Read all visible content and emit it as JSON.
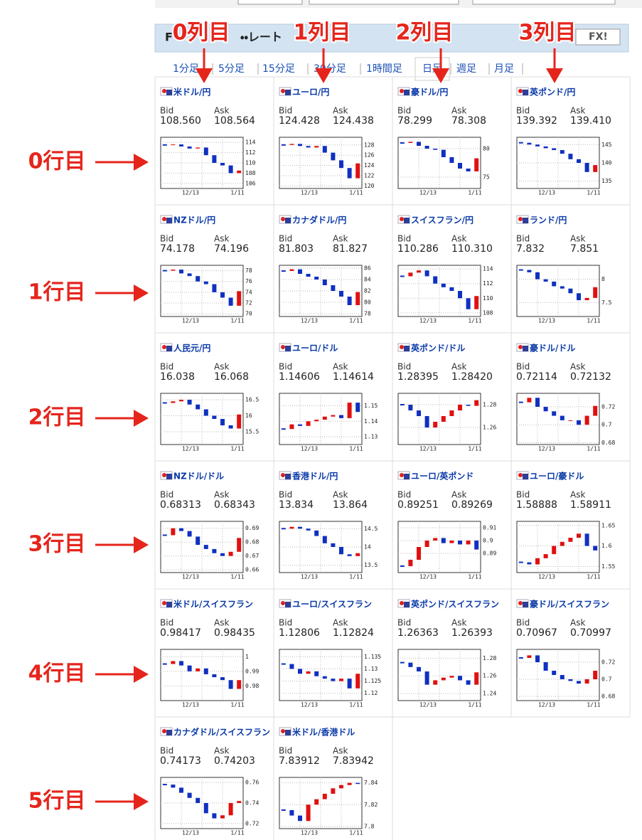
{
  "header": {
    "title_left": "F",
    "title_right": "・・レート",
    "logo": "FX!"
  },
  "tabs": [
    "1分足",
    "5分足",
    "15分足",
    "30分足",
    "1時間足",
    "日足",
    "週足",
    "月足"
  ],
  "labels": {
    "bid": "Bid",
    "ask": "Ask",
    "x_start": "12/13",
    "x_end": "1/11"
  },
  "annotations": {
    "columns": [
      "0列目",
      "1列目",
      "2列目",
      "3列目"
    ],
    "rows": [
      "0行目",
      "1行目",
      "2行目",
      "3行目",
      "4行目",
      "5行目"
    ]
  },
  "cards": [
    {
      "name": "米ドル/円",
      "bid": "108.560",
      "ask": "108.564",
      "ylim": [
        105,
        115
      ],
      "yticks": [
        114,
        112,
        110,
        108,
        106
      ],
      "values": [
        113.5,
        113.6,
        113.2,
        112.8,
        113.0,
        111.5,
        110.0,
        109.5,
        108.0,
        108.5
      ]
    },
    {
      "name": "ユーロ/円",
      "bid": "124.428",
      "ask": "124.438",
      "ylim": [
        119.5,
        129.5
      ],
      "yticks": [
        128,
        126,
        124,
        122,
        120
      ],
      "values": [
        128,
        128.2,
        127.8,
        127.5,
        127.8,
        126.5,
        125,
        123.5,
        121.5,
        124.4
      ]
    },
    {
      "name": "豪ドル/円",
      "bid": "78.299",
      "ask": "78.308",
      "ylim": [
        73,
        82
      ],
      "yticks": [
        80,
        75
      ],
      "values": [
        81,
        81.2,
        80.5,
        80,
        79.8,
        78.5,
        77.5,
        76.5,
        76,
        78.3
      ]
    },
    {
      "name": "英ポンド/円",
      "bid": "139.392",
      "ask": "139.410",
      "ylim": [
        133,
        147
      ],
      "yticks": [
        145,
        140,
        135
      ],
      "values": [
        145.5,
        145,
        144.5,
        144,
        143.5,
        142.5,
        141,
        140,
        137.5,
        139.4
      ]
    },
    {
      "name": "NZドル/円",
      "bid": "74.178",
      "ask": "74.196",
      "ylim": [
        69.5,
        79
      ],
      "yticks": [
        78,
        76,
        74,
        72,
        70
      ],
      "values": [
        78,
        78.2,
        77.5,
        77,
        76,
        75.5,
        74,
        73,
        71.5,
        74.2
      ]
    },
    {
      "name": "カナダドル/円",
      "bid": "81.803",
      "ask": "81.827",
      "ylim": [
        77.5,
        86.5
      ],
      "yticks": [
        86,
        84,
        82,
        80,
        78
      ],
      "values": [
        85.5,
        85.8,
        85,
        84.5,
        84,
        83,
        82,
        81,
        79.5,
        81.8
      ]
    },
    {
      "name": "スイスフラン/円",
      "bid": "110.286",
      "ask": "110.310",
      "ylim": [
        107.5,
        114.5
      ],
      "yticks": [
        114,
        112,
        110,
        108
      ],
      "values": [
        113,
        113.5,
        113.8,
        113,
        112,
        111.5,
        111,
        110,
        108.5,
        110.3
      ]
    },
    {
      "name": "ランド/円",
      "bid": "7.832",
      "ask": "7.851",
      "ylim": [
        7.2,
        8.3
      ],
      "yticks": [
        8,
        7.5
      ],
      "values": [
        8.2,
        8.15,
        8.0,
        7.95,
        7.85,
        7.8,
        7.7,
        7.55,
        7.6,
        7.83
      ]
    },
    {
      "name": "人民元/円",
      "bid": "16.038",
      "ask": "16.068",
      "ylim": [
        15.1,
        16.7
      ],
      "yticks": [
        16.5,
        16,
        15.5
      ],
      "values": [
        16.4,
        16.45,
        16.5,
        16.35,
        16.2,
        16.0,
        15.9,
        15.7,
        15.6,
        16.04
      ]
    },
    {
      "name": "ユーロ/ドル",
      "bid": "1.14606",
      "ask": "1.14614",
      "ylim": [
        1.125,
        1.158
      ],
      "yticks": [
        1.15,
        1.14,
        1.13
      ],
      "values": [
        1.135,
        1.138,
        1.137,
        1.14,
        1.141,
        1.143,
        1.144,
        1.142,
        1.152,
        1.146
      ]
    },
    {
      "name": "英ポンド/ドル",
      "bid": "1.28395",
      "ask": "1.28420",
      "ylim": [
        1.245,
        1.29
      ],
      "yticks": [
        1.28,
        1.26
      ],
      "values": [
        1.28,
        1.275,
        1.27,
        1.26,
        1.265,
        1.27,
        1.275,
        1.28,
        1.279,
        1.284
      ]
    },
    {
      "name": "豪ドル/ドル",
      "bid": "0.72114",
      "ask": "0.72132",
      "ylim": [
        0.678,
        0.735
      ],
      "yticks": [
        0.72,
        0.7,
        0.68
      ],
      "values": [
        0.725,
        0.73,
        0.72,
        0.715,
        0.71,
        0.705,
        0.705,
        0.7,
        0.71,
        0.721
      ]
    },
    {
      "name": "NZドル/ドル",
      "bid": "0.68313",
      "ask": "0.68343",
      "ylim": [
        0.658,
        0.695
      ],
      "yticks": [
        0.69,
        0.68,
        0.67,
        0.66
      ],
      "values": [
        0.685,
        0.69,
        0.688,
        0.684,
        0.678,
        0.675,
        0.672,
        0.67,
        0.673,
        0.683
      ]
    },
    {
      "name": "香港ドル/円",
      "bid": "13.834",
      "ask": "13.864",
      "ylim": [
        13.3,
        14.7
      ],
      "yticks": [
        14.5,
        14,
        13.5
      ],
      "values": [
        14.5,
        14.55,
        14.5,
        14.45,
        14.3,
        14.1,
        14,
        13.8,
        13.75,
        13.83
      ]
    },
    {
      "name": "ユーロ/英ポンド",
      "bid": "0.89251",
      "ask": "0.89269",
      "ylim": [
        0.875,
        0.915
      ],
      "yticks": [
        0.91,
        0.9,
        0.89
      ],
      "values": [
        0.88,
        0.885,
        0.895,
        0.9,
        0.902,
        0.898,
        0.9,
        0.897,
        0.9,
        0.893
      ]
    },
    {
      "name": "ユーロ/豪ドル",
      "bid": "1.58888",
      "ask": "1.58911",
      "ylim": [
        1.535,
        1.66
      ],
      "yticks": [
        1.65,
        1.6,
        1.55
      ],
      "values": [
        1.56,
        1.555,
        1.57,
        1.58,
        1.6,
        1.61,
        1.62,
        1.63,
        1.6,
        1.589
      ]
    },
    {
      "name": "米ドル/スイスフラン",
      "bid": "0.98417",
      "ask": "0.98435",
      "ylim": [
        0.97,
        1.005
      ],
      "yticks": [
        1,
        0.99,
        0.98
      ],
      "values": [
        0.995,
        0.997,
        0.994,
        0.99,
        0.992,
        0.988,
        0.986,
        0.984,
        0.978,
        0.984
      ]
    },
    {
      "name": "ユーロ/スイスフラン",
      "bid": "1.12806",
      "ask": "1.12824",
      "ylim": [
        1.117,
        1.138
      ],
      "yticks": [
        1.135,
        1.13,
        1.125,
        1.12
      ],
      "values": [
        1.132,
        1.13,
        1.128,
        1.129,
        1.127,
        1.126,
        1.125,
        1.126,
        1.122,
        1.128
      ]
    },
    {
      "name": "英ポンド/スイスフラン",
      "bid": "1.26363",
      "ask": "1.26393",
      "ylim": [
        1.232,
        1.29
      ],
      "yticks": [
        1.28,
        1.26,
        1.24
      ],
      "values": [
        1.275,
        1.27,
        1.265,
        1.25,
        1.255,
        1.258,
        1.26,
        1.255,
        1.25,
        1.264
      ]
    },
    {
      "name": "豪ドル/スイスフラン",
      "bid": "0.70967",
      "ask": "0.70997",
      "ylim": [
        0.675,
        0.735
      ],
      "yticks": [
        0.72,
        0.7,
        0.68
      ],
      "values": [
        0.725,
        0.728,
        0.72,
        0.71,
        0.705,
        0.7,
        0.698,
        0.695,
        0.7,
        0.71
      ]
    },
    {
      "name": "カナダドル/スイスフラン",
      "bid": "0.74173",
      "ask": "0.74203",
      "ylim": [
        0.715,
        0.765
      ],
      "yticks": [
        0.76,
        0.74,
        0.72
      ],
      "values": [
        0.758,
        0.755,
        0.75,
        0.745,
        0.74,
        0.73,
        0.725,
        0.728,
        0.74,
        0.742
      ]
    },
    {
      "name": "米ドル/香港ドル",
      "bid": "7.83912",
      "ask": "7.83942",
      "ylim": [
        7.798,
        7.845
      ],
      "yticks": [
        7.84,
        7.82,
        7.8
      ],
      "values": [
        7.815,
        7.81,
        7.805,
        7.82,
        7.825,
        7.83,
        7.835,
        7.838,
        7.84,
        7.839
      ]
    }
  ]
}
